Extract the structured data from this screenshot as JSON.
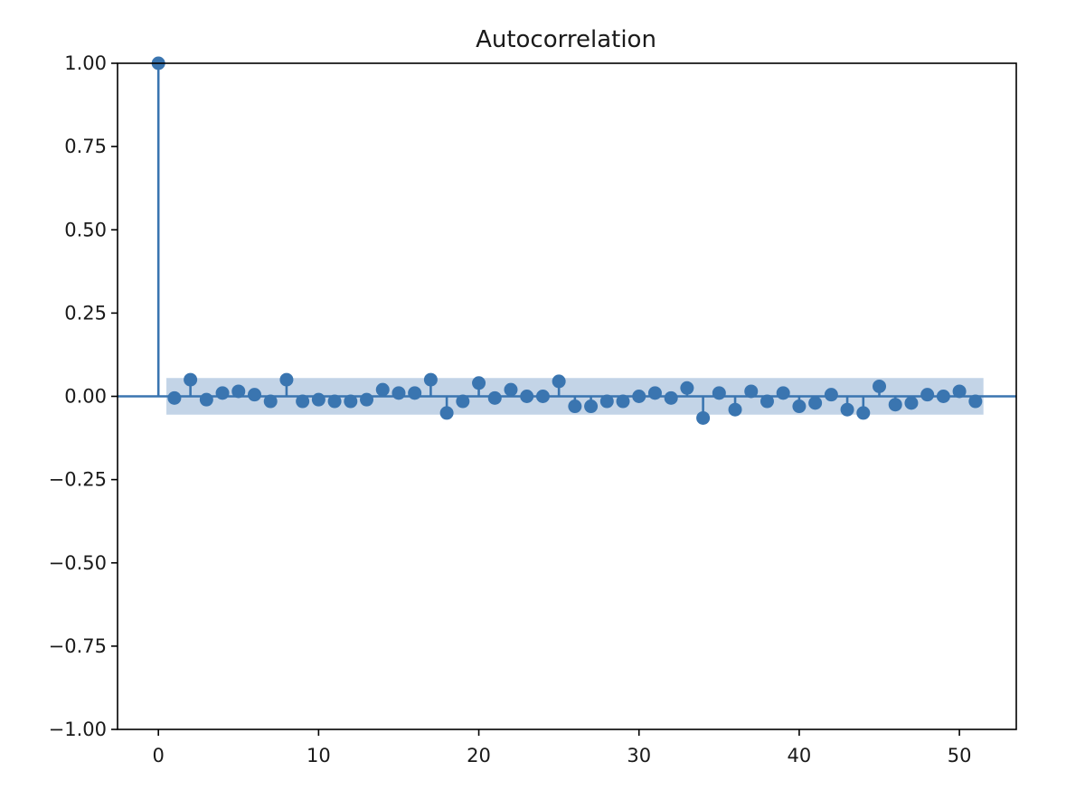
{
  "chart_data": {
    "type": "scatter",
    "title": "Autocorrelation",
    "xlabel": "",
    "ylabel": "",
    "xlim": [
      -2.55,
      53.55
    ],
    "ylim": [
      -1.0,
      1.0
    ],
    "x_ticks": [
      0,
      10,
      20,
      30,
      40,
      50
    ],
    "x_tick_labels": [
      "0",
      "10",
      "20",
      "30",
      "40",
      "50"
    ],
    "y_ticks": [
      1.0,
      0.75,
      0.5,
      0.25,
      0.0,
      -0.25,
      -0.5,
      -0.75,
      -1.0
    ],
    "y_tick_labels": [
      "1.00",
      "0.75",
      "0.50",
      "0.25",
      "0.00",
      "−0.25",
      "−0.50",
      "−0.75",
      "−1.00"
    ],
    "grid": false,
    "colors": {
      "stem": "#3a75b0",
      "marker": "#3a75b0",
      "confidence_band": "#b8cde3",
      "axes": "#000000"
    },
    "confidence_interval": {
      "lags": [
        0.5,
        51.5
      ],
      "upper": 0.055,
      "lower": -0.055
    },
    "series": [
      {
        "lags": [
          0,
          1,
          2,
          3,
          4,
          5,
          6,
          7,
          8,
          9,
          10,
          11,
          12,
          13,
          14,
          15,
          16,
          17,
          18,
          19,
          20,
          21,
          22,
          23,
          24,
          25,
          26,
          27,
          28,
          29,
          30,
          31,
          32,
          33,
          34,
          35,
          36,
          37,
          38,
          39,
          40,
          41,
          42,
          43,
          44,
          45,
          46,
          47,
          48,
          49,
          50,
          51
        ],
        "values": [
          1.0,
          -0.005,
          0.05,
          -0.01,
          0.01,
          0.015,
          0.005,
          -0.015,
          0.05,
          -0.015,
          -0.01,
          -0.015,
          -0.015,
          -0.01,
          0.02,
          0.01,
          0.01,
          0.05,
          -0.05,
          -0.015,
          0.04,
          -0.005,
          0.02,
          0.0,
          0.0,
          0.045,
          -0.03,
          -0.03,
          -0.015,
          -0.015,
          0.0,
          0.01,
          -0.005,
          0.025,
          -0.065,
          0.01,
          -0.04,
          0.015,
          -0.015,
          0.01,
          -0.03,
          -0.02,
          0.005,
          -0.04,
          -0.05,
          0.03,
          -0.025,
          -0.02,
          0.005,
          0.0,
          0.015,
          -0.015
        ]
      }
    ]
  }
}
